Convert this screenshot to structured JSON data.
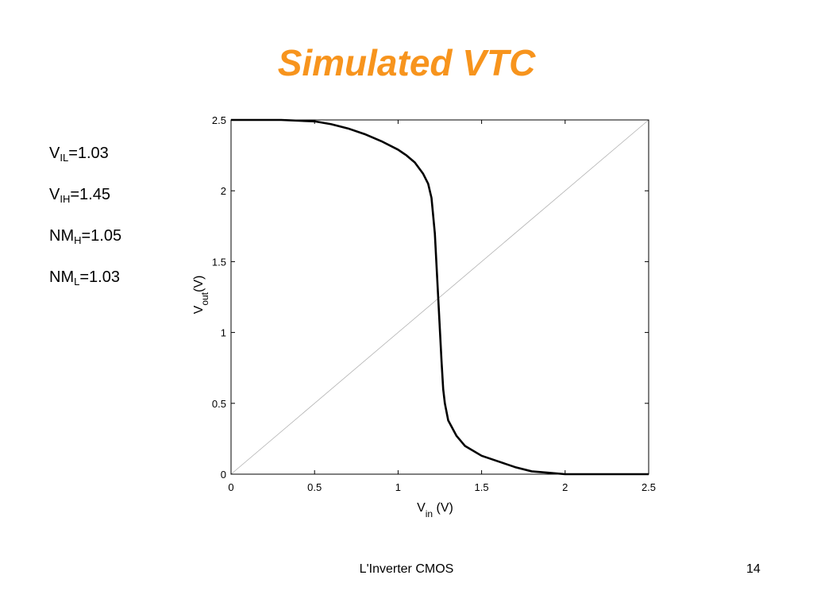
{
  "slide": {
    "title": "Simulated VTC",
    "footer": "L'Inverter CMOS",
    "page_number": "14",
    "title_color": "#f7941d"
  },
  "metrics": [
    {
      "base": "V",
      "sub": "IL",
      "value": "=1.03"
    },
    {
      "base": "V",
      "sub": "IH",
      "value": "=1.45"
    },
    {
      "base": "NM",
      "sub": "H",
      "value": "=1.05"
    },
    {
      "base": "NM",
      "sub": "L",
      "value": "=1.03"
    }
  ],
  "chart_data": {
    "type": "line",
    "xlabel": {
      "base": "V",
      "sub": "in",
      "unit": " (V)"
    },
    "ylabel": {
      "base": "V",
      "sub": "out",
      "unit": "(V)"
    },
    "xlim": [
      0,
      2.5
    ],
    "ylim": [
      0,
      2.5
    ],
    "x_ticks": [
      "0",
      "0.5",
      "1",
      "1.5",
      "2",
      "2.5"
    ],
    "y_ticks": [
      "0",
      "0.5",
      "1",
      "1.5",
      "2",
      "2.5"
    ],
    "grid": false,
    "series": [
      {
        "color": "#000000",
        "line_width": "thick",
        "x": [
          0,
          0.3,
          0.5,
          0.6,
          0.7,
          0.8,
          0.9,
          1.0,
          1.05,
          1.1,
          1.15,
          1.18,
          1.2,
          1.22,
          1.24,
          1.26,
          1.27,
          1.28,
          1.3,
          1.35,
          1.4,
          1.5,
          1.6,
          1.7,
          1.8,
          1.9,
          2.0,
          2.2,
          2.5
        ],
        "y": [
          2.5,
          2.5,
          2.49,
          2.47,
          2.44,
          2.4,
          2.35,
          2.29,
          2.25,
          2.2,
          2.12,
          2.05,
          1.95,
          1.7,
          1.25,
          0.8,
          0.6,
          0.5,
          0.38,
          0.27,
          0.2,
          0.13,
          0.09,
          0.05,
          0.02,
          0.01,
          0.0,
          0.0,
          0.0
        ]
      },
      {
        "color": "#b0b0b0",
        "line_width": "thin",
        "x": [
          0,
          2.5
        ],
        "y": [
          0,
          2.5
        ]
      }
    ]
  }
}
